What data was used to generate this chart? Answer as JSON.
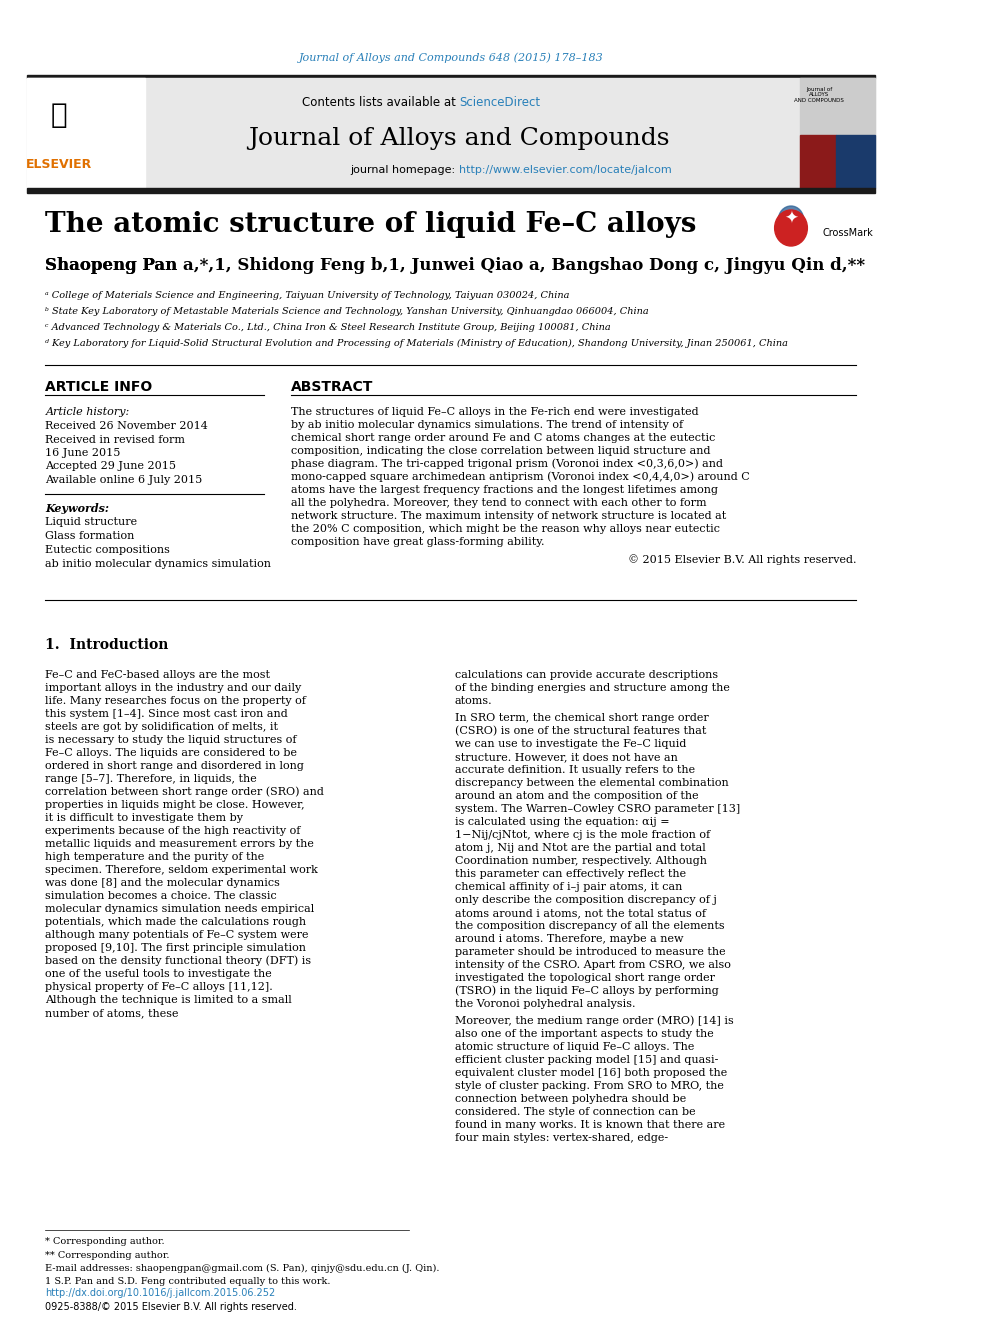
{
  "page_title_link": "Journal of Alloys and Compounds 648 (2015) 178–183",
  "journal_name": "Journal of Alloys and Compounds",
  "contents_text": "Contents lists available at ",
  "science_direct": "ScienceDirect",
  "homepage_text": "journal homepage: ",
  "homepage_link": "http://www.elsevier.com/locate/jalcom",
  "paper_title": "The atomic structure of liquid Fe–C alloys",
  "authors": "Shaopeng Pan à,*,1, Shidong Feng b,1, Junwei Qiao à, Bangshao Dong c, Jingyu Qin d,**",
  "affil_a": "ᵃ College of Materials Science and Engineering, Taiyuan University of Technology, Taiyuan 030024, China",
  "affil_b": "ᵇ State Key Laboratory of Metastable Materials Science and Technology, Yanshan University, Qinhuangdao 066004, China",
  "affil_c": "ᶜ Advanced Technology & Materials Co., Ltd., China Iron & Steel Research Institute Group, Beijing 100081, China",
  "affil_d": "ᵈ Key Laboratory for Liquid-Solid Structural Evolution and Processing of Materials (Ministry of Education), Shandong University, Jinan 250061, China",
  "article_info_title": "ARTICLE INFO",
  "abstract_title": "ABSTRACT",
  "article_history": "Article history:",
  "received1": "Received 26 November 2014",
  "received2": "Received in revised form",
  "date2": "16 June 2015",
  "accepted": "Accepted 29 June 2015",
  "available": "Available online 6 July 2015",
  "keywords_title": "Keywords:",
  "kw1": "Liquid structure",
  "kw2": "Glass formation",
  "kw3": "Eutectic compositions",
  "kw4": "ab initio molecular dynamics simulation",
  "abstract_text": "The structures of liquid Fe–C alloys in the Fe-rich end were investigated by ab initio molecular dynamics simulations. The trend of intensity of chemical short range order around Fe and C atoms changes at the eutectic composition, indicating the close correlation between liquid structure and phase diagram. The tri-capped trigonal prism (Voronoi index <0,3,6,0>) and mono-capped square archimedean antiprism (Voronoi index <0,4,4,0>) around C atoms have the largest frequency fractions and the longest lifetimes among all the polyhedra. Moreover, they tend to connect with each other to form network structure. The maximum intensity of network structure is located at the 20% C composition, which might be the reason why alloys near eutectic composition have great glass-forming ability.",
  "copyright": "© 2015 Elsevier B.V. All rights reserved.",
  "section1_title": "1.  Introduction",
  "intro_left": "Fe–C and FeC-based alloys are the most important alloys in the industry and our daily life. Many researches focus on the property of this system [1–4]. Since most cast iron and steels are got by solidification of melts, it is necessary to study the liquid structures of Fe–C alloys. The liquids are considered to be ordered in short range and disordered in long range [5–7]. Therefore, in liquids, the correlation between short range order (SRO) and properties in liquids might be close. However, it is difficult to investigate them by experiments because of the high reactivity of metallic liquids and measurement errors by the high temperature and the purity of the specimen. Therefore, seldom experimental work was done [8] and the molecular dynamics simulation becomes a choice. The classic molecular dynamics simulation needs empirical potentials, which made the calculations rough although many potentials of Fe–C system were proposed [9,10]. The first principle simulation based on the density functional theory (DFT) is one of the useful tools to investigate the physical property of Fe–C alloys [11,12]. Although the technique is limited to a small number of atoms, these",
  "intro_right": "calculations can provide accurate descriptions of the binding energies and structure among the atoms.\n    In SRO term, the chemical short range order (CSRO) is one of the structural features that we can use to investigate the Fe–C liquid structure. However, it does not have an accurate definition. It usually refers to the discrepancy between the elemental combination around an atom and the composition of the system. The Warren–Cowley CSRO parameter [13] is calculated using the equation: αij = 1−Nij/cjNtot, where cj is the mole fraction of atom j, Nij and Ntot are the partial and total Coordination number, respectively. Although this parameter can effectively reflect the chemical affinity of i–j pair atoms, it can only describe the composition discrepancy of j atoms around i atoms, not the total status of the composition discrepancy of all the elements around i atoms. Therefore, maybe a new parameter should be introduced to measure the intensity of the CSRO. Apart from CSRO, we also investigated the topological short range order (TSRO) in the liquid Fe–C alloys by performing the Voronoi polyhedral analysis.\n    Moreover, the medium range order (MRO) [14] is also one of the important aspects to study the atomic structure of liquid Fe–C alloys. The efficient cluster packing model [15] and quasi-equivalent cluster model [16] both proposed the style of cluster packing. From SRO to MRO, the connection between polyhedra should be considered. The style of connection can be found in many works. It is known that there are four main styles: vertex-shared, edge-",
  "footnotes": "* Corresponding author.\n** Corresponding author.\nE-mail addresses: shaopengpan@gmail.com (S. Pan), qinjy@sdu.edu.cn (J. Qin).\n1 S.P. Pan and S.D. Feng contributed equally to this work.",
  "doi_text": "http://dx.doi.org/10.1016/j.jallcom.2015.06.252",
  "issn_text": "0925-8388/© 2015 Elsevier B.V. All rights reserved.",
  "bg_color": "#ffffff",
  "header_bg": "#e8e8e8",
  "link_color": "#2980b9",
  "top_bar_color": "#1a1a1a",
  "divider_color": "#000000",
  "section_divider_color": "#555555"
}
